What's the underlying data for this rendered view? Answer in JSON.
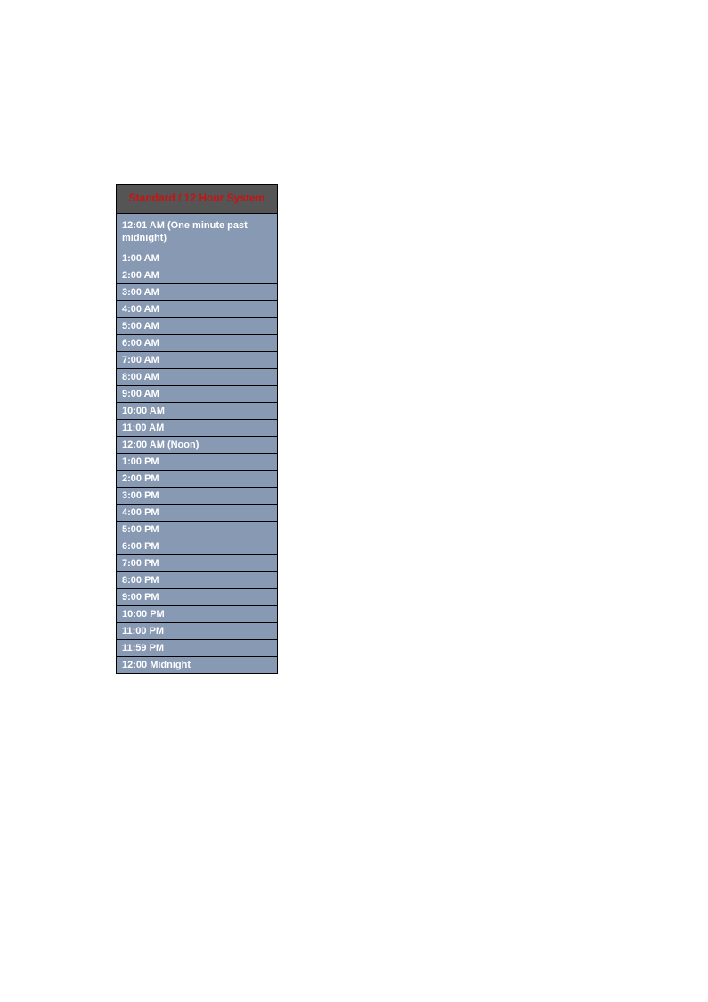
{
  "table": {
    "header": "Standard / 12 Hour System",
    "header_bg": "#555555",
    "header_color": "#cc1111",
    "row_bg": "#8899b3",
    "row_color": "#ffffff",
    "border_color": "#000000",
    "rows": [
      "12:01 AM (One minute past midnight)",
      "1:00 AM",
      "2:00 AM",
      "3:00 AM",
      "4:00 AM",
      "5:00 AM",
      "6:00 AM",
      "7:00 AM",
      "8:00 AM",
      "9:00 AM",
      "10:00 AM",
      "11:00 AM",
      "12:00 AM (Noon)",
      "1:00 PM",
      "2:00 PM",
      "3:00 PM",
      "4:00 PM",
      "5:00 PM",
      "6:00 PM",
      "7:00 PM",
      "8:00 PM",
      "9:00 PM",
      "10:00 PM",
      "11:00 PM",
      "11:59 PM",
      "12:00 Midnight"
    ]
  }
}
